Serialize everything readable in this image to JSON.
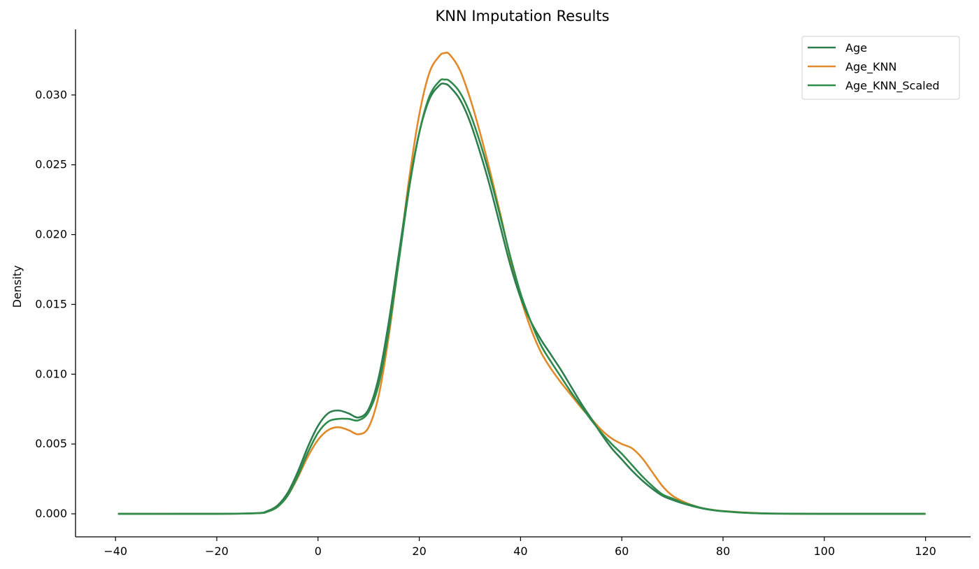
{
  "chart_data": {
    "type": "line",
    "title": "KNN Imputation Results",
    "xlabel": "",
    "ylabel": "Density",
    "xlim": [
      -47.9,
      128.9
    ],
    "ylim": [
      -0.00165,
      0.0347
    ],
    "xticks": [
      -40,
      -20,
      0,
      20,
      40,
      60,
      80,
      100,
      120
    ],
    "xtick_labels": [
      "−40",
      "−20",
      "0",
      "20",
      "40",
      "60",
      "80",
      "100",
      "120"
    ],
    "yticks": [
      0.0,
      0.005,
      0.01,
      0.015,
      0.02,
      0.025,
      0.03
    ],
    "ytick_labels": [
      "0.000",
      "0.005",
      "0.010",
      "0.015",
      "0.020",
      "0.025",
      "0.030"
    ],
    "grid": false,
    "legend_position": "top-right",
    "x": [
      -39.5,
      -20,
      -12,
      -10,
      -8,
      -6,
      -4,
      -2,
      0,
      2,
      4,
      6,
      8,
      10,
      12,
      14,
      16,
      18,
      20,
      22,
      24,
      25,
      26,
      28,
      30,
      32,
      34,
      36,
      38,
      40,
      42,
      44,
      46,
      48,
      50,
      52,
      54,
      56,
      58,
      60,
      62,
      64,
      66,
      68,
      70,
      72,
      74,
      76,
      78,
      80,
      85,
      90,
      100,
      110,
      120
    ],
    "series": [
      {
        "name": "Age",
        "color": "#2e7d4f",
        "values": [
          0,
          0,
          5e-05,
          0.0002,
          0.0006,
          0.0015,
          0.003,
          0.0048,
          0.0063,
          0.0072,
          0.0074,
          0.0072,
          0.0069,
          0.0075,
          0.0098,
          0.0138,
          0.0187,
          0.0235,
          0.0273,
          0.0297,
          0.0307,
          0.0308,
          0.0306,
          0.0297,
          0.0281,
          0.0259,
          0.0234,
          0.0206,
          0.0178,
          0.0155,
          0.0138,
          0.0125,
          0.0114,
          0.0103,
          0.0091,
          0.0079,
          0.0068,
          0.0057,
          0.0047,
          0.0039,
          0.0031,
          0.0024,
          0.0018,
          0.0013,
          0.001,
          0.00075,
          0.00055,
          0.00038,
          0.00026,
          0.00018,
          6e-05,
          1e-05,
          0,
          0,
          0
        ]
      },
      {
        "name": "Age_KNN",
        "color": "#e08a2a",
        "values": [
          0,
          0,
          4e-05,
          0.00015,
          0.0005,
          0.0013,
          0.0026,
          0.0041,
          0.0053,
          0.006,
          0.0062,
          0.006,
          0.0057,
          0.0062,
          0.0085,
          0.0128,
          0.0183,
          0.024,
          0.0286,
          0.0316,
          0.0328,
          0.033,
          0.0329,
          0.0318,
          0.0298,
          0.0273,
          0.0245,
          0.0215,
          0.0183,
          0.0155,
          0.0133,
          0.0116,
          0.0104,
          0.0094,
          0.0085,
          0.0076,
          0.0068,
          0.006,
          0.0054,
          0.005,
          0.0047,
          0.004,
          0.003,
          0.002,
          0.0013,
          0.0009,
          0.0006,
          0.0004,
          0.00028,
          0.0002,
          8e-05,
          2e-05,
          0,
          0,
          0
        ]
      },
      {
        "name": "Age_KNN_Scaled",
        "color": "#2e8b4a",
        "values": [
          0,
          0,
          4e-05,
          0.00015,
          0.0005,
          0.0013,
          0.0027,
          0.0044,
          0.0058,
          0.0066,
          0.0068,
          0.0068,
          0.0067,
          0.0073,
          0.0093,
          0.0132,
          0.0182,
          0.0233,
          0.0273,
          0.0299,
          0.031,
          0.0311,
          0.031,
          0.0302,
          0.0287,
          0.0266,
          0.0241,
          0.0213,
          0.0184,
          0.0158,
          0.0138,
          0.0121,
          0.0109,
          0.0098,
          0.0087,
          0.0077,
          0.0067,
          0.0058,
          0.005,
          0.0043,
          0.0035,
          0.0027,
          0.002,
          0.0014,
          0.0011,
          0.0008,
          0.0006,
          0.0004,
          0.00027,
          0.00019,
          7e-05,
          2e-05,
          0,
          0,
          0
        ]
      }
    ]
  }
}
